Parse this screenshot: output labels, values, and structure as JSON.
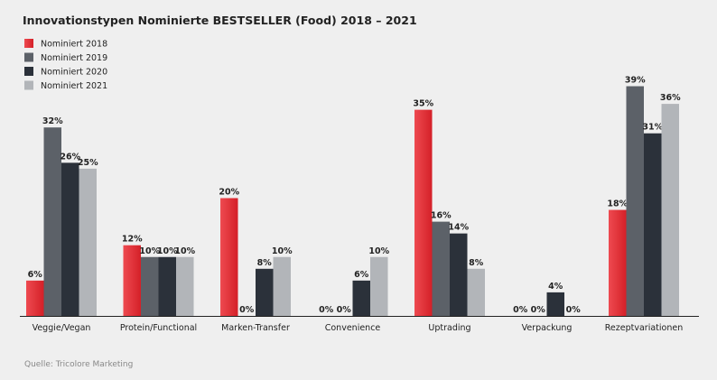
{
  "chart_data": {
    "type": "bar",
    "title": "Innovationstypen Nominierte BESTSELLER (Food) 2018 – 2021",
    "categories": [
      "Veggie/Vegan",
      "Protein/Functional",
      "Marken-Transfer",
      "Convenience",
      "Uptrading",
      "Verpackung",
      "Rezeptvariationen"
    ],
    "series": [
      {
        "name": "Nominiert 2018",
        "values": [
          6,
          12,
          20,
          0,
          35,
          0,
          18
        ],
        "labels": [
          "6%",
          "12%",
          "20%",
          "0%",
          "35%",
          "0%",
          "18%"
        ],
        "color": "#d42028",
        "color_light": "#ee4a50"
      },
      {
        "name": "Nominiert 2019",
        "values": [
          32,
          10,
          0,
          0,
          16,
          0,
          39
        ],
        "labels": [
          "32%",
          "10%",
          "0%",
          "0%",
          "16%",
          "0%",
          "39%"
        ],
        "color": "#5c6168",
        "color_light": "#5c6168"
      },
      {
        "name": "Nominiert 2020",
        "values": [
          26,
          10,
          8,
          6,
          14,
          4,
          31
        ],
        "labels": [
          "26%",
          "10%",
          "8%",
          "6%",
          "14%",
          "4%",
          "31%"
        ],
        "color": "#2b313a",
        "color_light": "#2b313a"
      },
      {
        "name": "Nominiert 2021",
        "values": [
          25,
          10,
          10,
          10,
          8,
          0,
          36
        ],
        "labels": [
          "25%",
          "10%",
          "10%",
          "10%",
          "8%",
          "0%",
          "36%"
        ],
        "color": "#b2b5b9",
        "color_light": "#b2b5b9"
      }
    ],
    "ylim": [
      0,
      40
    ],
    "grid": false,
    "legend": "top-left",
    "xlabel": "",
    "ylabel": ""
  },
  "source": "Quelle: Tricolore Marketing"
}
